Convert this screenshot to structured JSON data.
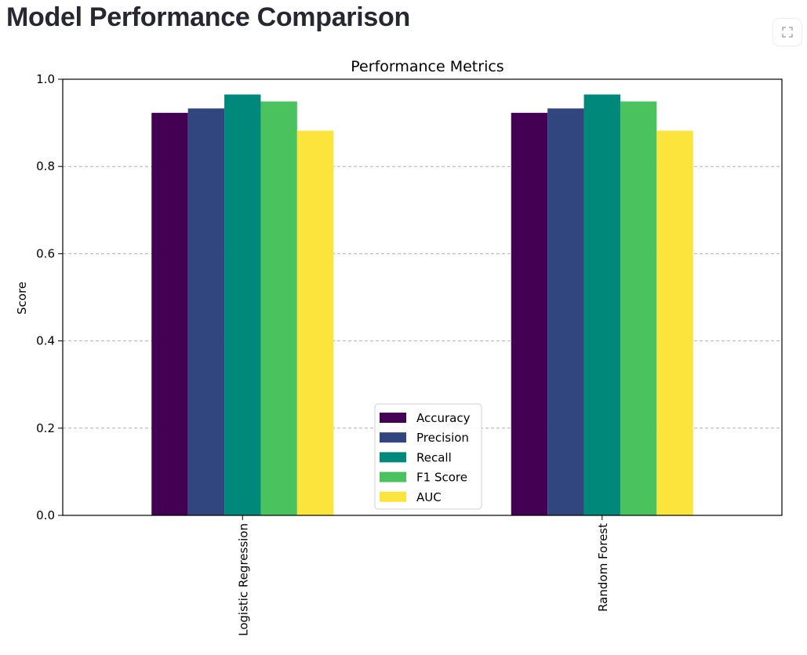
{
  "page": {
    "title": "Model Performance Comparison",
    "fullscreen_icon": "expand-icon"
  },
  "chart_data": {
    "type": "bar",
    "title": "Performance Metrics",
    "xlabel": "",
    "ylabel": "Score",
    "categories": [
      "Logistic Regression",
      "Random Forest"
    ],
    "series": [
      {
        "name": "Accuracy",
        "values": [
          0.923,
          0.923
        ],
        "color": "#440154"
      },
      {
        "name": "Precision",
        "values": [
          0.933,
          0.933
        ],
        "color": "#31457e"
      },
      {
        "name": "Recall",
        "values": [
          0.965,
          0.965
        ],
        "color": "#00897b"
      },
      {
        "name": "F1 Score",
        "values": [
          0.949,
          0.949
        ],
        "color": "#4ac25e"
      },
      {
        "name": "AUC",
        "values": [
          0.882,
          0.882
        ],
        "color": "#fde43d"
      }
    ],
    "ylim": [
      0.0,
      1.0
    ],
    "yticks": [
      "0.0",
      "0.2",
      "0.4",
      "0.6",
      "0.8",
      "1.0"
    ],
    "grid": "horizontal-dashed",
    "legend_position": "bottom-center"
  }
}
